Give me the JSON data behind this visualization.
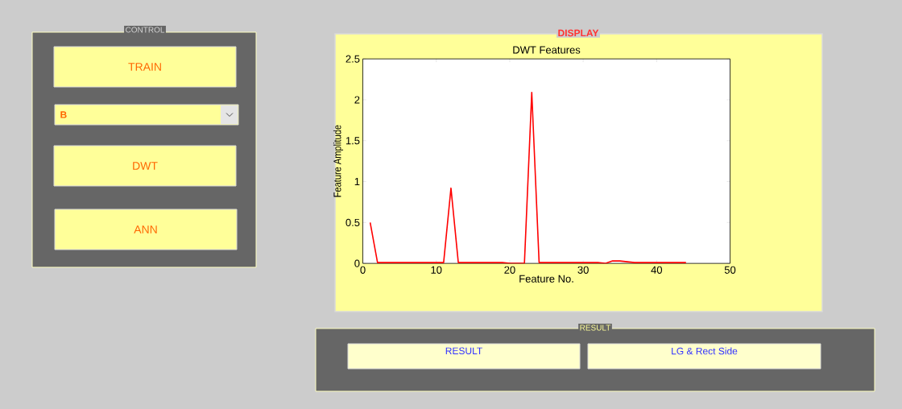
{
  "chart_data": [
    {
      "type": "other",
      "title": "CONTROL",
      "annotations": [
        "TRAIN",
        "B",
        "DWT",
        "ANN"
      ]
    },
    {
      "type": "line",
      "title": "DWT Features",
      "xlabel": "Feature No.",
      "ylabel": "Feature Amplitude",
      "annotations": [
        "DISPLAY"
      ],
      "x": [
        1,
        2,
        3,
        4,
        5,
        6,
        7,
        8,
        9,
        10,
        11,
        12,
        13,
        14,
        15,
        16,
        17,
        18,
        19,
        20,
        21,
        22,
        23,
        24,
        25,
        26,
        27,
        28,
        29,
        30,
        31,
        32,
        33,
        34,
        35,
        36,
        37,
        38,
        39,
        40,
        41,
        42,
        43,
        44
      ],
      "series": [
        {
          "color": "#ff0000",
          "values": [
            0.5,
            0.01,
            0.01,
            0.01,
            0.01,
            0.01,
            0.01,
            0.01,
            0.01,
            0.01,
            0.01,
            0.92,
            0.01,
            0.01,
            0.01,
            0.01,
            0.01,
            0.01,
            0.01,
            0,
            0,
            0,
            2.09,
            0.01,
            0.01,
            0.01,
            0.01,
            0.01,
            0.01,
            0.01,
            0.01,
            0.01,
            0,
            0.03,
            0.03,
            0.02,
            0.01,
            0.01,
            0.01,
            0.01,
            0.01,
            0.01,
            0.01,
            0.01
          ]
        }
      ],
      "xlim": [
        0,
        50
      ],
      "ylim": [
        0,
        2.5
      ],
      "xticks": [
        0,
        10,
        20,
        30,
        40,
        50
      ],
      "yticks": [
        0,
        0.5,
        1,
        1.5,
        2,
        2.5
      ]
    },
    {
      "type": "other",
      "title": "RESULT",
      "annotations": [
        "RESULT",
        "LG & Rect Side"
      ]
    }
  ]
}
